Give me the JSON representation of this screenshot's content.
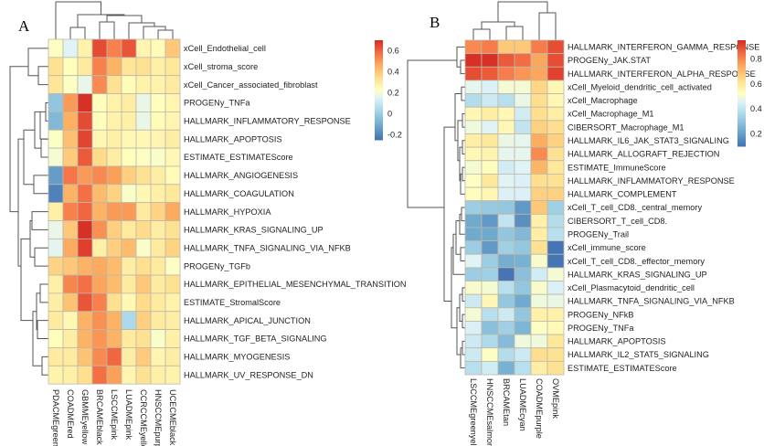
{
  "chart_data": [
    {
      "type": "heatmap",
      "panel_label": "A",
      "title": "",
      "columns": [
        "PDACMEgreen",
        "COADMEred",
        "GBMMEyellow",
        "BRCAMEblack",
        "LSCCMEpink",
        "LUADMEpink",
        "CCRCCMEyellow",
        "HNSCCMEpurple",
        "UCECMEblack"
      ],
      "rows": [
        "xCell_Endothelial_cell",
        "xCell_stroma_score",
        "xCell_Cancer_associated_fibroblast",
        "PROGENy_TNFa",
        "HALLMARK_INFLAMMATORY_RESPONSE",
        "HALLMARK_APOPTOSIS",
        "ESTIMATE_ESTIMATEScore",
        "HALLMARK_ANGIOGENESIS",
        "HALLMARK_COAGULATION",
        "HALLMARK_HYPOXIA",
        "HALLMARK_KRAS_SIGNALING_UP",
        "HALLMARK_TNFA_SIGNALING_VIA_NFKB",
        "PROGENy_TGFb",
        "HALLMARK_EPITHELIAL_MESENCHYMAL_TRANSITION",
        "ESTIMATE_StromalScore",
        "HALLMARK_APICAL_JUNCTION",
        "HALLMARK_TGF_BETA_SIGNALING",
        "HALLMARK_MYOGENESIS",
        "HALLMARK_UV_RESPONSE_DN"
      ],
      "values": [
        [
          0.22,
          0.15,
          0.27,
          0.65,
          0.55,
          0.63,
          0.26,
          0.24,
          0.4
        ],
        [
          0.33,
          0.23,
          0.3,
          0.55,
          0.45,
          0.32,
          0.33,
          0.28,
          0.31
        ],
        [
          0.32,
          0.22,
          0.17,
          0.53,
          0.33,
          0.24,
          0.27,
          0.27,
          0.3
        ],
        [
          -0.03,
          0.5,
          0.7,
          0.23,
          0.27,
          0.29,
          0.17,
          0.23,
          0.26
        ],
        [
          -0.07,
          0.46,
          0.65,
          0.23,
          0.27,
          0.28,
          0.17,
          0.24,
          0.26
        ],
        [
          0.22,
          0.42,
          0.66,
          0.25,
          0.28,
          0.25,
          0.25,
          0.26,
          0.29
        ],
        [
          0.2,
          0.39,
          0.62,
          0.35,
          0.29,
          0.23,
          0.22,
          0.21,
          0.25
        ],
        [
          -0.15,
          0.57,
          0.5,
          0.53,
          0.49,
          0.38,
          0.33,
          0.29,
          0.24
        ],
        [
          -0.22,
          0.45,
          0.58,
          0.43,
          0.37,
          0.21,
          0.25,
          0.28,
          0.31
        ],
        [
          0.28,
          0.55,
          0.6,
          0.45,
          0.5,
          0.5,
          0.3,
          0.37,
          0.47
        ],
        [
          0.17,
          0.4,
          0.7,
          0.52,
          0.38,
          0.3,
          0.35,
          0.29,
          0.33
        ],
        [
          0.16,
          0.47,
          0.67,
          0.28,
          0.38,
          0.43,
          0.21,
          0.3,
          0.37
        ],
        [
          0.37,
          0.4,
          0.45,
          0.47,
          0.43,
          0.29,
          0.34,
          0.3,
          0.22
        ],
        [
          0.28,
          0.54,
          0.58,
          0.48,
          0.43,
          0.3,
          0.4,
          0.3,
          0.33
        ],
        [
          0.29,
          0.41,
          0.63,
          0.55,
          0.34,
          0.25,
          0.35,
          0.3,
          0.27
        ],
        [
          0.3,
          0.25,
          0.45,
          0.52,
          0.45,
          0.04,
          0.38,
          0.3,
          0.29
        ],
        [
          0.23,
          0.29,
          0.45,
          0.51,
          0.45,
          0.3,
          0.33,
          0.21,
          0.28
        ],
        [
          0.3,
          0.3,
          0.41,
          0.53,
          0.6,
          0.29,
          0.39,
          0.26,
          0.29
        ],
        [
          0.27,
          0.28,
          0.34,
          0.58,
          0.49,
          0.26,
          0.33,
          0.28,
          0.27
        ]
      ],
      "color_scale": {
        "low": "#4575b4",
        "mid": "#ffffbf",
        "high": "#d73027",
        "range": [
          -0.25,
          0.7
        ]
      },
      "legend": {
        "position": "right",
        "ticks": [
          "0.6",
          "0.4",
          "0.2",
          "0",
          "-0.2"
        ],
        "tick_values": [
          0.6,
          0.4,
          0.2,
          0,
          -0.2
        ]
      }
    },
    {
      "type": "heatmap",
      "panel_label": "B",
      "title": "",
      "columns": [
        "LSCCMEgreenyellow",
        "HNSCCMEsalmon",
        "BRCAMEtan",
        "LUADMEcyan",
        "COADMEpurple",
        "OVMEpink"
      ],
      "rows": [
        "HALLMARK_INTERFERON_GAMMA_RESPONSE",
        "PROGENy_JAK.STAT",
        "HALLMARK_INTERFERON_ALPHA_RESPONSE",
        "xCell_Myeloid_dendritic_cell_activated",
        "xCell_Macrophage",
        "xCell_Macrophage_M1",
        "CIBERSORT_Macrophage_M1",
        "HALLMARK_IL6_JAK_STAT3_SIGNALING",
        "HALLMARK_ALLOGRAFT_REJECTION",
        "ESTIMATE_ImmuneScore",
        "HALLMARK_INFLAMMATORY_RESPONSE",
        "HALLMARK_COMPLEMENT",
        "xCell_T_cell_CD8._central_memory",
        "CIBERSORT_T_cell_CD8.",
        "PROGENy_Trail",
        "xCell_immune_score",
        "xCell_T_cell_CD8._effector_memory",
        "HALLMARK_KRAS_SIGNALING_UP",
        "xCell_Plasmacytoid_dendritic_cell",
        "HALLMARK_TNFA_SIGNALING_VIA_NFKB",
        "PROGENy_NFkB",
        "PROGENy_TNFa",
        "HALLMARK_APOPTOSIS",
        "HALLMARK_IL2_STAT5_SIGNALING",
        "ESTIMATE_ESTIMATEScore"
      ],
      "values": [
        [
          0.8,
          0.82,
          0.68,
          0.68,
          0.82,
          0.9
        ],
        [
          0.95,
          0.95,
          0.88,
          0.85,
          0.75,
          0.9
        ],
        [
          0.9,
          0.88,
          0.82,
          0.78,
          0.75,
          0.92
        ],
        [
          0.47,
          0.45,
          0.5,
          0.5,
          0.65,
          0.55
        ],
        [
          0.37,
          0.42,
          0.38,
          0.48,
          0.63,
          0.55
        ],
        [
          0.55,
          0.58,
          0.55,
          0.43,
          0.63,
          0.58
        ],
        [
          0.49,
          0.46,
          0.55,
          0.4,
          0.66,
          0.63
        ],
        [
          0.58,
          0.6,
          0.48,
          0.47,
          0.74,
          0.66
        ],
        [
          0.55,
          0.56,
          0.47,
          0.47,
          0.8,
          0.62
        ],
        [
          0.5,
          0.53,
          0.43,
          0.46,
          0.72,
          0.6
        ],
        [
          0.52,
          0.6,
          0.46,
          0.45,
          0.63,
          0.62
        ],
        [
          0.53,
          0.55,
          0.45,
          0.45,
          0.66,
          0.66
        ],
        [
          0.32,
          0.31,
          0.3,
          0.18,
          0.68,
          0.33
        ],
        [
          0.22,
          0.18,
          0.4,
          0.16,
          0.57,
          0.37
        ],
        [
          0.22,
          0.22,
          0.3,
          0.26,
          0.58,
          0.38
        ],
        [
          0.32,
          0.18,
          0.33,
          0.3,
          0.62,
          0.08
        ],
        [
          0.46,
          0.32,
          0.23,
          0.24,
          0.51,
          0.1
        ],
        [
          0.32,
          0.33,
          0.05,
          0.28,
          0.43,
          0.5
        ],
        [
          0.51,
          0.5,
          0.38,
          0.3,
          0.51,
          0.45
        ],
        [
          0.42,
          0.55,
          0.3,
          0.22,
          0.49,
          0.48
        ],
        [
          0.5,
          0.38,
          0.42,
          0.3,
          0.57,
          0.57
        ],
        [
          0.45,
          0.28,
          0.33,
          0.25,
          0.52,
          0.54
        ],
        [
          0.42,
          0.36,
          0.27,
          0.49,
          0.49,
          0.6
        ],
        [
          0.42,
          0.52,
          0.37,
          0.42,
          0.63,
          0.62
        ],
        [
          0.38,
          0.43,
          0.24,
          0.38,
          0.58,
          0.62
        ]
      ],
      "color_scale": {
        "low": "#4575b4",
        "mid": "#ffffbf",
        "high": "#d73027",
        "range": [
          0.1,
          0.95
        ]
      },
      "legend": {
        "position": "right",
        "ticks": [
          "0.8",
          "0.6",
          "0.4",
          "0.2"
        ],
        "tick_values": [
          0.8,
          0.6,
          0.4,
          0.2
        ]
      }
    }
  ]
}
